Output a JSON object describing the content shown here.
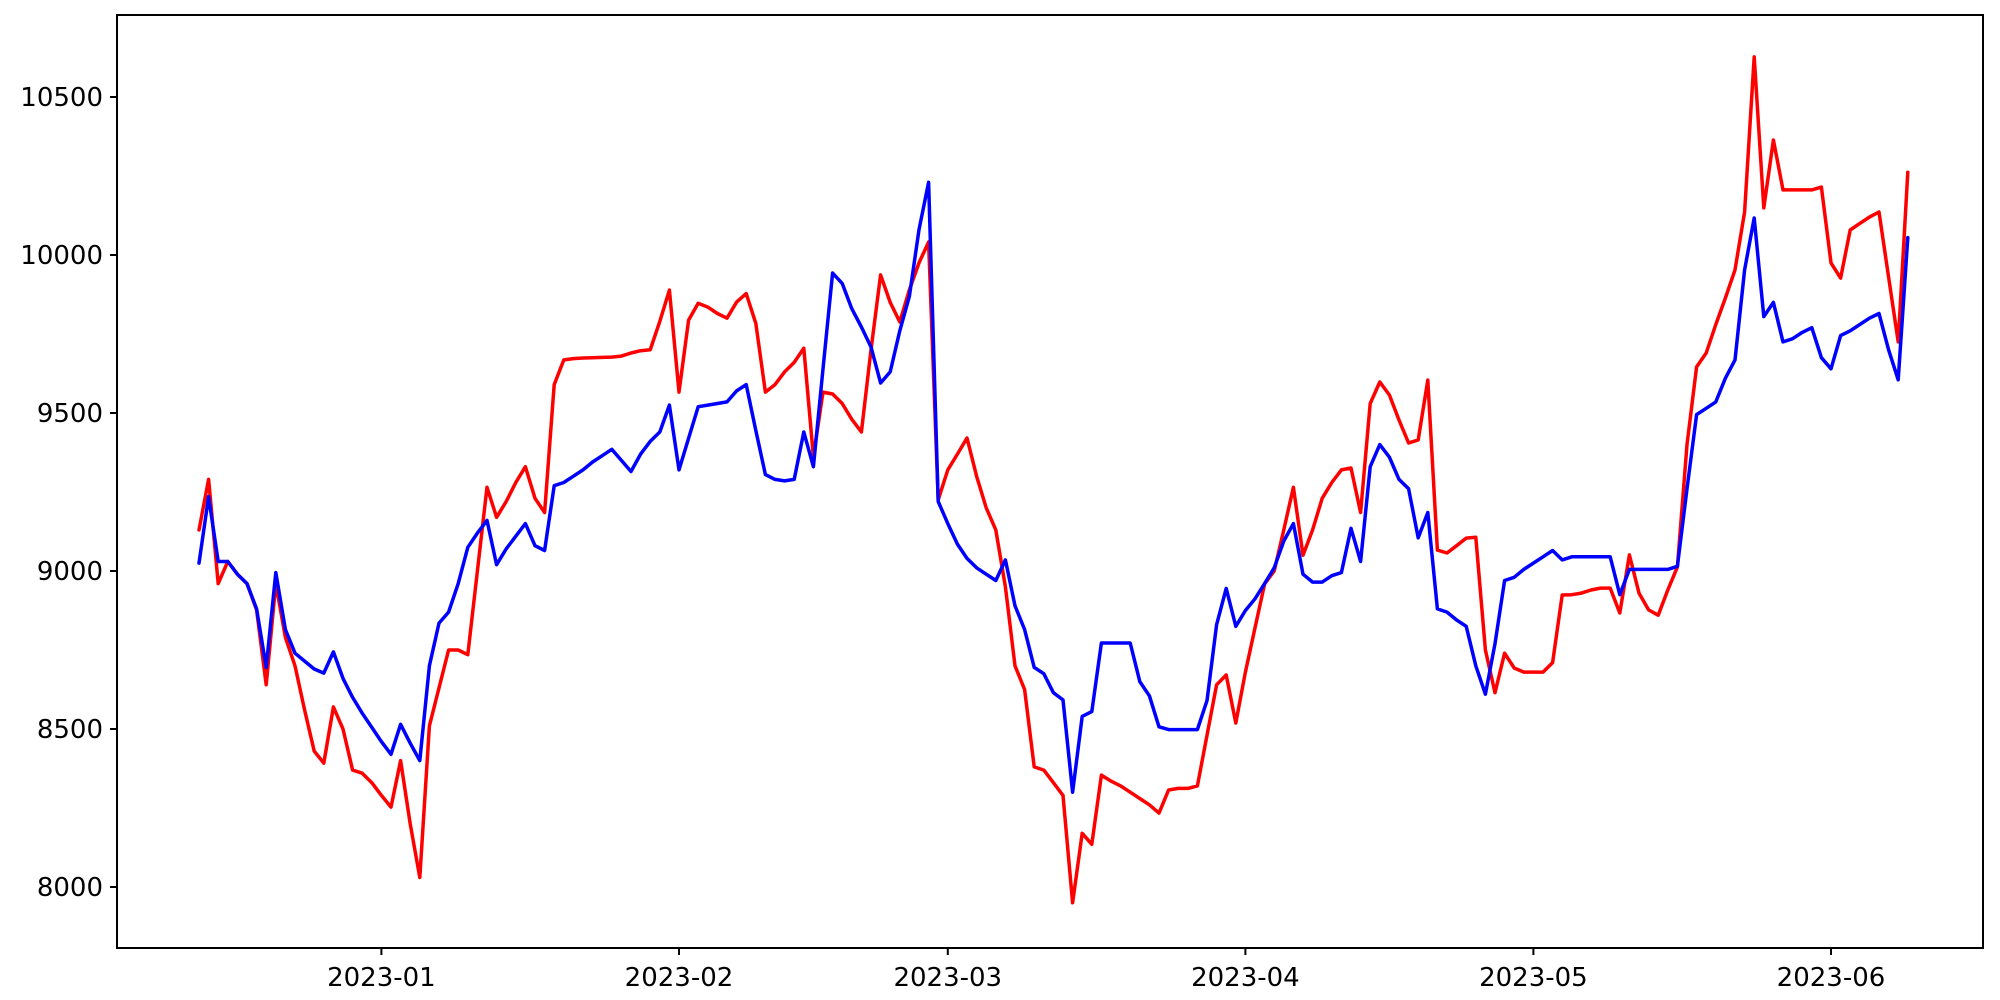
{
  "figure": {
    "background": "#ffffff",
    "axes_box_color": "#000000"
  },
  "chart_data": {
    "type": "line",
    "title": "",
    "xlabel": "",
    "ylabel": "",
    "grid": false,
    "legend": "none",
    "x_axis": {
      "kind": "date",
      "start_date": "2022-12-13",
      "end_date": "2023-06-09",
      "freq": "daily",
      "num_points": 179,
      "ticks": [
        {
          "label": "2023-01",
          "day_offset": 19
        },
        {
          "label": "2023-02",
          "day_offset": 50
        },
        {
          "label": "2023-03",
          "day_offset": 78
        },
        {
          "label": "2023-04",
          "day_offset": 109
        },
        {
          "label": "2023-05",
          "day_offset": 139
        },
        {
          "label": "2023-06",
          "day_offset": 170
        }
      ]
    },
    "y_axis": {
      "ticks": [
        8000,
        8500,
        9000,
        9500,
        10000,
        10500
      ],
      "ylim": [
        7810,
        10760
      ]
    },
    "series": [
      {
        "name": "red-series",
        "color": "#ff0000",
        "values": [
          9130,
          9290,
          8960,
          9030,
          8990,
          8960,
          8877,
          8640,
          8960,
          8790,
          8700,
          8560,
          8430,
          8392,
          8570,
          8500,
          8370,
          8360,
          8330,
          8290,
          8253,
          8400,
          8200,
          8030,
          8510,
          8630,
          8750,
          8750,
          8735,
          9000,
          9265,
          9170,
          9220,
          9280,
          9330,
          9230,
          9185,
          9590,
          9668,
          9672,
          9674,
          9675,
          9676,
          9677,
          9680,
          9690,
          9697,
          9700,
          9790,
          9889,
          9566,
          9794,
          9847,
          9835,
          9815,
          9800,
          9851,
          9878,
          9784,
          9566,
          9590,
          9630,
          9660,
          9705,
          9361,
          9566,
          9560,
          9530,
          9480,
          9440,
          9700,
          9937,
          9850,
          9788,
          9890,
          9975,
          10041,
          9225,
          9320,
          9370,
          9421,
          9300,
          9200,
          9130,
          8950,
          8700,
          8625,
          8380,
          8370,
          8330,
          8290,
          7950,
          8170,
          8135,
          8354,
          8335,
          8320,
          8300,
          8280,
          8260,
          8234,
          8307,
          8312,
          8312,
          8320,
          8480,
          8640,
          8671,
          8519,
          8680,
          8820,
          8959,
          9000,
          9130,
          9265,
          9050,
          9130,
          9230,
          9280,
          9320,
          9326,
          9185,
          9530,
          9598,
          9557,
          9478,
          9405,
          9415,
          9604,
          9066,
          9057,
          9080,
          9104,
          9107,
          8750,
          8615,
          8740,
          8693,
          8680,
          8680,
          8680,
          8710,
          8924,
          8925,
          8930,
          8940,
          8946,
          8946,
          8867,
          9051,
          8930,
          8877,
          8860,
          8940,
          9013,
          9400,
          9646,
          9690,
          9780,
          9864,
          9953,
          10136,
          10627,
          10149,
          10364,
          10206,
          10206,
          10206,
          10206,
          10215,
          9975,
          9927,
          10079,
          10100,
          10120,
          10136,
          9930,
          9725,
          10262
        ]
      },
      {
        "name": "blue-series",
        "color": "#0000ff",
        "values": [
          9025,
          9235,
          9030,
          9030,
          8990,
          8960,
          8880,
          8695,
          8995,
          8815,
          8740,
          8715,
          8690,
          8677,
          8744,
          8660,
          8600,
          8550,
          8505,
          8460,
          8420,
          8515,
          8455,
          8400,
          8700,
          8835,
          8870,
          8960,
          9075,
          9120,
          9160,
          9020,
          9070,
          9110,
          9150,
          9080,
          9065,
          9270,
          9280,
          9300,
          9320,
          9345,
          9365,
          9385,
          9350,
          9315,
          9370,
          9410,
          9440,
          9525,
          9320,
          9420,
          9520,
          9525,
          9530,
          9535,
          9570,
          9590,
          9445,
          9305,
          9290,
          9285,
          9290,
          9440,
          9330,
          9640,
          9943,
          9910,
          9830,
          9772,
          9709,
          9595,
          9630,
          9760,
          9870,
          10080,
          10230,
          9220,
          9150,
          9085,
          9040,
          9010,
          8990,
          8970,
          9035,
          8890,
          8815,
          8695,
          8675,
          8615,
          8592,
          8300,
          8540,
          8555,
          8772,
          8772,
          8772,
          8772,
          8650,
          8605,
          8507,
          8498,
          8498,
          8498,
          8498,
          8590,
          8830,
          8945,
          8825,
          8875,
          8912,
          8960,
          9010,
          9095,
          9150,
          8990,
          8965,
          8965,
          8985,
          8995,
          9135,
          9030,
          9330,
          9400,
          9360,
          9290,
          9260,
          9105,
          9185,
          8880,
          8870,
          8845,
          8825,
          8700,
          8610,
          8770,
          8970,
          8980,
          9005,
          9025,
          9045,
          9065,
          9035,
          9045,
          9045,
          9045,
          9045,
          9045,
          8925,
          9005,
          9005,
          9005,
          9005,
          9005,
          9015,
          9260,
          9495,
          9515,
          9535,
          9610,
          9668,
          9953,
          10117,
          9805,
          9850,
          9725,
          9735,
          9755,
          9770,
          9675,
          9640,
          9745,
          9760,
          9780,
          9800,
          9815,
          9700,
          9605,
          10055
        ]
      }
    ]
  }
}
